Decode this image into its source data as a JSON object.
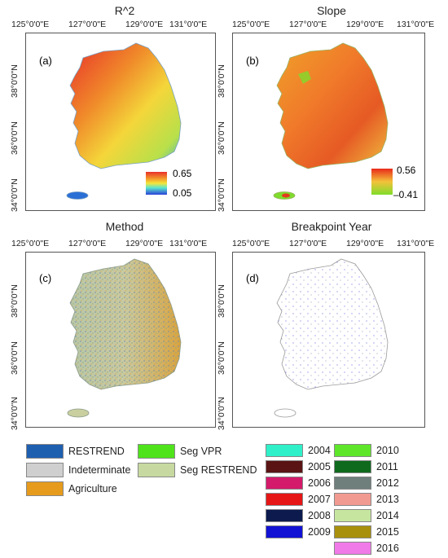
{
  "panels": [
    {
      "title": "R^2",
      "label": "(a)",
      "cbar": {
        "max": "0.65",
        "min": "0.05"
      }
    },
    {
      "title": "Slope",
      "label": "(b)",
      "cbar": {
        "max": "0.56",
        "min": "–0.41"
      }
    },
    {
      "title": "Method",
      "label": "(c)"
    },
    {
      "title": "Breakpoint Year",
      "label": "(d)"
    }
  ],
  "lon_ticks": [
    "125°0'0\"E",
    "127°0'0\"E",
    "129°0'0\"E",
    "131°0'0\"E"
  ],
  "lat_ticks": [
    "38°0'0\"N",
    "36°0'0\"N",
    "34°0'0\"N"
  ],
  "colors": {
    "r2_high": "#e8302a",
    "r2_mid": "#f4d63a",
    "r2_low": "#2a6fd6",
    "slope_high": "#e23a1c",
    "slope_low": "#7fdc2c",
    "method_base": "#c9cf9f",
    "method_ag": "#d9a441",
    "method_blue": "#7f93a8",
    "coast": "#9a9a9a"
  },
  "method_legend": [
    {
      "label": "RESTREND",
      "color": "#1f5fb0"
    },
    {
      "label": "Indeterminate",
      "color": "#cfcfcf"
    },
    {
      "label": "Agriculture",
      "color": "#e69b1d"
    },
    {
      "label": "Seg VPR",
      "color": "#4ee31b"
    },
    {
      "label": "Seg RESTREND",
      "color": "#c7d9a0"
    }
  ],
  "year_legend": [
    {
      "label": "2004",
      "color": "#2ff0c8"
    },
    {
      "label": "2005",
      "color": "#5a1414"
    },
    {
      "label": "2006",
      "color": "#d41a6a"
    },
    {
      "label": "2007",
      "color": "#e61616"
    },
    {
      "label": "2008",
      "color": "#0c1a4e"
    },
    {
      "label": "2009",
      "color": "#1212d4"
    },
    {
      "label": "2010",
      "color": "#5ee62a"
    },
    {
      "label": "2011",
      "color": "#0f6a1e"
    },
    {
      "label": "2012",
      "color": "#6f7f7c"
    },
    {
      "label": "2013",
      "color": "#f19a92"
    },
    {
      "label": "2014",
      "color": "#c6e6a0"
    },
    {
      "label": "2015",
      "color": "#a8900c"
    },
    {
      "label": "2016",
      "color": "#f07ae8"
    }
  ]
}
